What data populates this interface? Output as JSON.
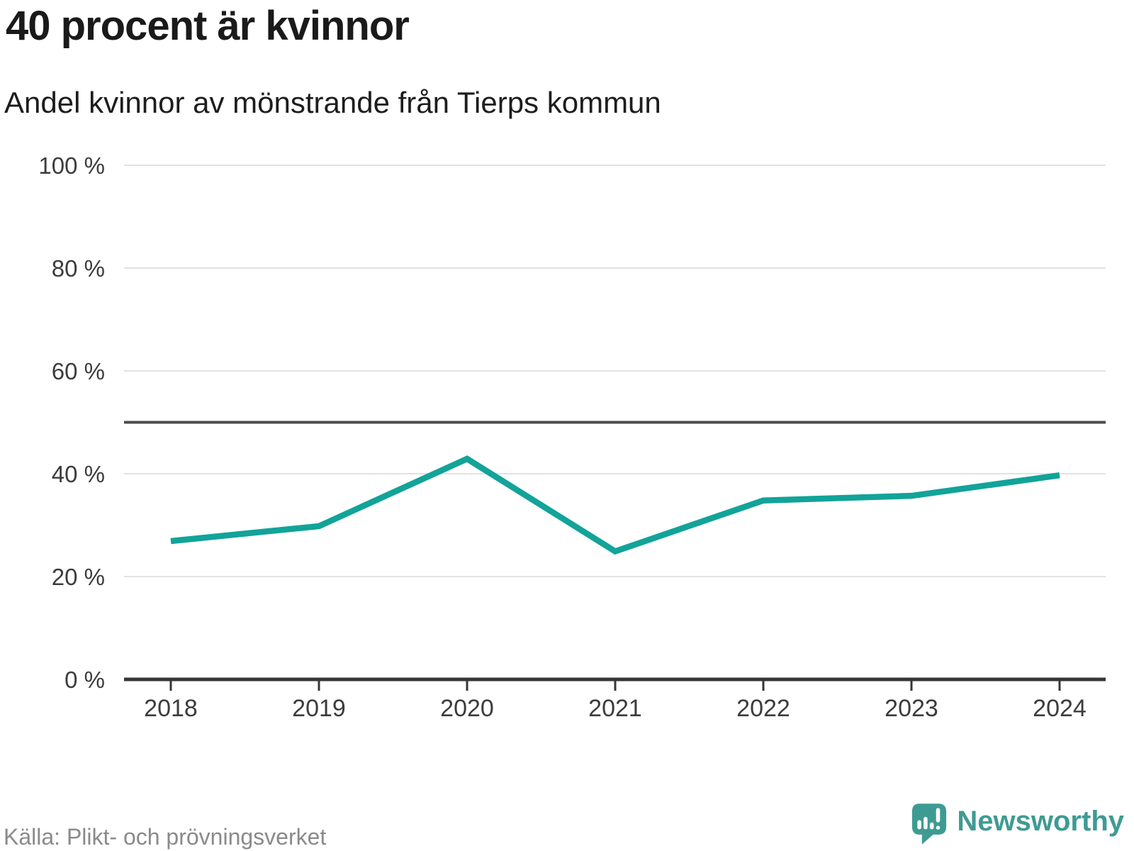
{
  "header": {
    "title": "40 procent är kvinnor",
    "subtitle": "Andel kvinnor av mönstrande från Tierps kommun"
  },
  "chart_data": {
    "type": "line",
    "title": "40 procent är kvinnor",
    "subtitle": "Andel kvinnor av mönstrande från Tierps kommun",
    "categories": [
      "2018",
      "2019",
      "2020",
      "2021",
      "2022",
      "2023",
      "2024"
    ],
    "series": [
      {
        "name": "Andel kvinnor av mönstrande",
        "values": [
          26.9,
          29.8,
          42.9,
          24.9,
          34.8,
          35.7,
          39.7
        ]
      }
    ],
    "unit": "%",
    "ylim": [
      0,
      100
    ],
    "yticks": [
      0,
      20,
      40,
      60,
      80,
      100
    ],
    "ytick_labels": [
      "0 %",
      "20 %",
      "40 %",
      "60 %",
      "80 %",
      "100 %"
    ],
    "reference_line": 50,
    "grid": "horizontal",
    "legend": "none",
    "line_color": "#12a399",
    "gridline_color": "#e2e2e2",
    "reference_line_color": "#4d4d4d",
    "axis_color": "#363636",
    "label_color": "#3c3c3c"
  },
  "footer": {
    "source": "Källa: Plikt- och prövningsverket",
    "logo_text": "Newsworthy",
    "logo_color": "#3e9b93"
  }
}
